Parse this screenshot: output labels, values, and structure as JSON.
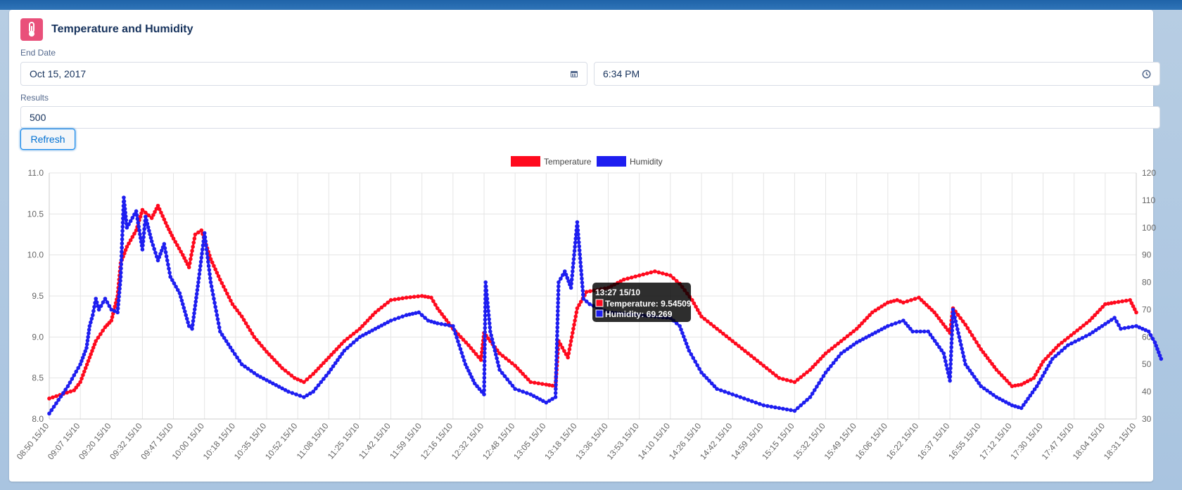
{
  "card": {
    "title": "Temperature and Humidity",
    "icon": "thermometer-icon"
  },
  "form": {
    "end_date_label": "End Date",
    "end_date_value": "Oct 15, 2017",
    "end_time_value": "6:34 PM",
    "results_label": "Results",
    "results_value": "500",
    "refresh_label": "Refresh"
  },
  "colors": {
    "temperature": "#ff0a1e",
    "humidity": "#1e1ef0",
    "icon_bg": "#e9507a"
  },
  "chart_data": {
    "type": "line",
    "x_categories": [
      "08:50 15/10",
      "09:07 15/10",
      "09:20 15/10",
      "09:32 15/10",
      "09:47 15/10",
      "10:00 15/10",
      "10:18 15/10",
      "10:35 15/10",
      "10:52 15/10",
      "11:08 15/10",
      "11:25 15/10",
      "11:42 15/10",
      "11:59 15/10",
      "12:16 15/10",
      "12:32 15/10",
      "12:48 15/10",
      "13:05 15/10",
      "13:18 15/10",
      "13:36 15/10",
      "13:53 15/10",
      "14:10 15/10",
      "14:26 15/10",
      "14:42 15/10",
      "14:59 15/10",
      "15:15 15/10",
      "15:32 15/10",
      "15:49 15/10",
      "16:06 15/10",
      "16:22 15/10",
      "16:37 15/10",
      "16:55 15/10",
      "17:12 15/10",
      "17:30 15/10",
      "17:47 15/10",
      "18:04 15/10",
      "18:31 15/10"
    ],
    "y_left": {
      "min": 8.0,
      "max": 11.0,
      "ticks": [
        "8.0",
        "8.5",
        "9.0",
        "9.5",
        "10.0",
        "10.5",
        "11.0"
      ]
    },
    "y_right": {
      "min": 30,
      "max": 120,
      "ticks": [
        "30",
        "40",
        "50",
        "60",
        "70",
        "80",
        "90",
        "100",
        "110",
        "120"
      ]
    },
    "grid": true,
    "legend_position": "top",
    "series": [
      {
        "name": "Temperature",
        "axis": "left",
        "values": [
          [
            0,
            8.25
          ],
          [
            0.8,
            8.35
          ],
          [
            1,
            8.45
          ],
          [
            1.3,
            8.75
          ],
          [
            1.5,
            8.95
          ],
          [
            1.8,
            9.12
          ],
          [
            2,
            9.2
          ],
          [
            2.2,
            9.5
          ],
          [
            2.3,
            9.9
          ],
          [
            2.5,
            10.1
          ],
          [
            2.8,
            10.3
          ],
          [
            3,
            10.55
          ],
          [
            3.3,
            10.45
          ],
          [
            3.5,
            10.6
          ],
          [
            3.8,
            10.35
          ],
          [
            4,
            10.2
          ],
          [
            4.3,
            10.0
          ],
          [
            4.5,
            9.85
          ],
          [
            4.7,
            10.25
          ],
          [
            4.9,
            10.3
          ],
          [
            5.2,
            9.95
          ],
          [
            5.5,
            9.7
          ],
          [
            5.9,
            9.4
          ],
          [
            6.2,
            9.25
          ],
          [
            6.6,
            9.0
          ],
          [
            7,
            8.82
          ],
          [
            7.5,
            8.62
          ],
          [
            7.9,
            8.5
          ],
          [
            8.2,
            8.45
          ],
          [
            8.5,
            8.55
          ],
          [
            9,
            8.75
          ],
          [
            9.5,
            8.95
          ],
          [
            10,
            9.1
          ],
          [
            10.5,
            9.3
          ],
          [
            11,
            9.45
          ],
          [
            11.5,
            9.48
          ],
          [
            12,
            9.5
          ],
          [
            12.3,
            9.48
          ],
          [
            12.5,
            9.35
          ],
          [
            13,
            9.1
          ],
          [
            13.5,
            8.9
          ],
          [
            13.9,
            8.72
          ],
          [
            14,
            9.05
          ],
          [
            14.2,
            8.95
          ],
          [
            14.5,
            8.8
          ],
          [
            15,
            8.65
          ],
          [
            15.5,
            8.45
          ],
          [
            16,
            8.42
          ],
          [
            16.3,
            8.4
          ],
          [
            16.4,
            8.95
          ],
          [
            16.7,
            8.75
          ],
          [
            17,
            9.35
          ],
          [
            17.3,
            9.55
          ],
          [
            18,
            9.6
          ],
          [
            18.5,
            9.7
          ],
          [
            19,
            9.75
          ],
          [
            19.5,
            9.8
          ],
          [
            20,
            9.75
          ],
          [
            20.3,
            9.65
          ],
          [
            20.7,
            9.45
          ],
          [
            21,
            9.25
          ],
          [
            21.5,
            9.1
          ],
          [
            22,
            8.95
          ],
          [
            22.5,
            8.8
          ],
          [
            23,
            8.65
          ],
          [
            23.5,
            8.5
          ],
          [
            24,
            8.45
          ],
          [
            24.5,
            8.6
          ],
          [
            25,
            8.8
          ],
          [
            25.5,
            8.95
          ],
          [
            26,
            9.1
          ],
          [
            26.5,
            9.3
          ],
          [
            27,
            9.42
          ],
          [
            27.3,
            9.45
          ],
          [
            27.5,
            9.42
          ],
          [
            28,
            9.48
          ],
          [
            28.5,
            9.3
          ],
          [
            29,
            9.05
          ],
          [
            29.1,
            9.35
          ],
          [
            29.5,
            9.15
          ],
          [
            30,
            8.85
          ],
          [
            30.5,
            8.6
          ],
          [
            31,
            8.4
          ],
          [
            31.3,
            8.42
          ],
          [
            31.7,
            8.5
          ],
          [
            32,
            8.7
          ],
          [
            32.5,
            8.9
          ],
          [
            33,
            9.05
          ],
          [
            33.5,
            9.2
          ],
          [
            34,
            9.4
          ],
          [
            34.3,
            9.42
          ],
          [
            34.8,
            9.45
          ],
          [
            35,
            9.3
          ]
        ]
      },
      {
        "name": "Humidity",
        "axis": "right",
        "values": [
          [
            0,
            32
          ],
          [
            0.6,
            42
          ],
          [
            1,
            50
          ],
          [
            1.2,
            56
          ],
          [
            1.3,
            64
          ],
          [
            1.4,
            68
          ],
          [
            1.5,
            74
          ],
          [
            1.6,
            70
          ],
          [
            1.8,
            74
          ],
          [
            2,
            70
          ],
          [
            2.2,
            69
          ],
          [
            2.3,
            82
          ],
          [
            2.4,
            111
          ],
          [
            2.5,
            100
          ],
          [
            2.8,
            106
          ],
          [
            3,
            92
          ],
          [
            3.1,
            104
          ],
          [
            3.3,
            95
          ],
          [
            3.5,
            88
          ],
          [
            3.7,
            94
          ],
          [
            3.9,
            82
          ],
          [
            4.2,
            76
          ],
          [
            4.5,
            64
          ],
          [
            4.6,
            63
          ],
          [
            4.8,
            80
          ],
          [
            5,
            98
          ],
          [
            5.2,
            80
          ],
          [
            5.5,
            62
          ],
          [
            5.9,
            55
          ],
          [
            6.2,
            50
          ],
          [
            6.7,
            46
          ],
          [
            7.2,
            43
          ],
          [
            7.7,
            40
          ],
          [
            8.2,
            38
          ],
          [
            8.5,
            40
          ],
          [
            9,
            47
          ],
          [
            9.5,
            55
          ],
          [
            10,
            60
          ],
          [
            10.5,
            63
          ],
          [
            11,
            66
          ],
          [
            11.5,
            68
          ],
          [
            11.9,
            69
          ],
          [
            12.2,
            66
          ],
          [
            12.5,
            65
          ],
          [
            13,
            64
          ],
          [
            13.4,
            50
          ],
          [
            13.7,
            43
          ],
          [
            14,
            39
          ],
          [
            14.05,
            80
          ],
          [
            14.2,
            62
          ],
          [
            14.5,
            48
          ],
          [
            15,
            41
          ],
          [
            15.5,
            39
          ],
          [
            16,
            36
          ],
          [
            16.3,
            38
          ],
          [
            16.4,
            80
          ],
          [
            16.6,
            84
          ],
          [
            16.8,
            78
          ],
          [
            17,
            102
          ],
          [
            17.2,
            74
          ],
          [
            17.4,
            72
          ],
          [
            18,
            69
          ],
          [
            19,
            68
          ],
          [
            20,
            67
          ],
          [
            20.3,
            64
          ],
          [
            20.6,
            55
          ],
          [
            21,
            47
          ],
          [
            21.5,
            41
          ],
          [
            22,
            39
          ],
          [
            22.5,
            37
          ],
          [
            23,
            35
          ],
          [
            23.5,
            34
          ],
          [
            24,
            33
          ],
          [
            24.5,
            38
          ],
          [
            25,
            47
          ],
          [
            25.5,
            54
          ],
          [
            26,
            58
          ],
          [
            26.5,
            61
          ],
          [
            27,
            64
          ],
          [
            27.5,
            66
          ],
          [
            27.8,
            62
          ],
          [
            28.3,
            62
          ],
          [
            28.8,
            54
          ],
          [
            29,
            44
          ],
          [
            29.1,
            70
          ],
          [
            29.5,
            50
          ],
          [
            30,
            42
          ],
          [
            30.5,
            38
          ],
          [
            31,
            35
          ],
          [
            31.3,
            34
          ],
          [
            31.8,
            42
          ],
          [
            32.3,
            52
          ],
          [
            32.8,
            57
          ],
          [
            33.5,
            61
          ],
          [
            34.3,
            67
          ],
          [
            34.5,
            63
          ],
          [
            35,
            64
          ],
          [
            35.4,
            62
          ],
          [
            35.6,
            58
          ],
          [
            35.8,
            52
          ]
        ]
      }
    ],
    "tooltip": {
      "title": "13:27 15/10",
      "lines": [
        "Temperature: 9.54509",
        "Humidity: 69.269"
      ]
    }
  }
}
